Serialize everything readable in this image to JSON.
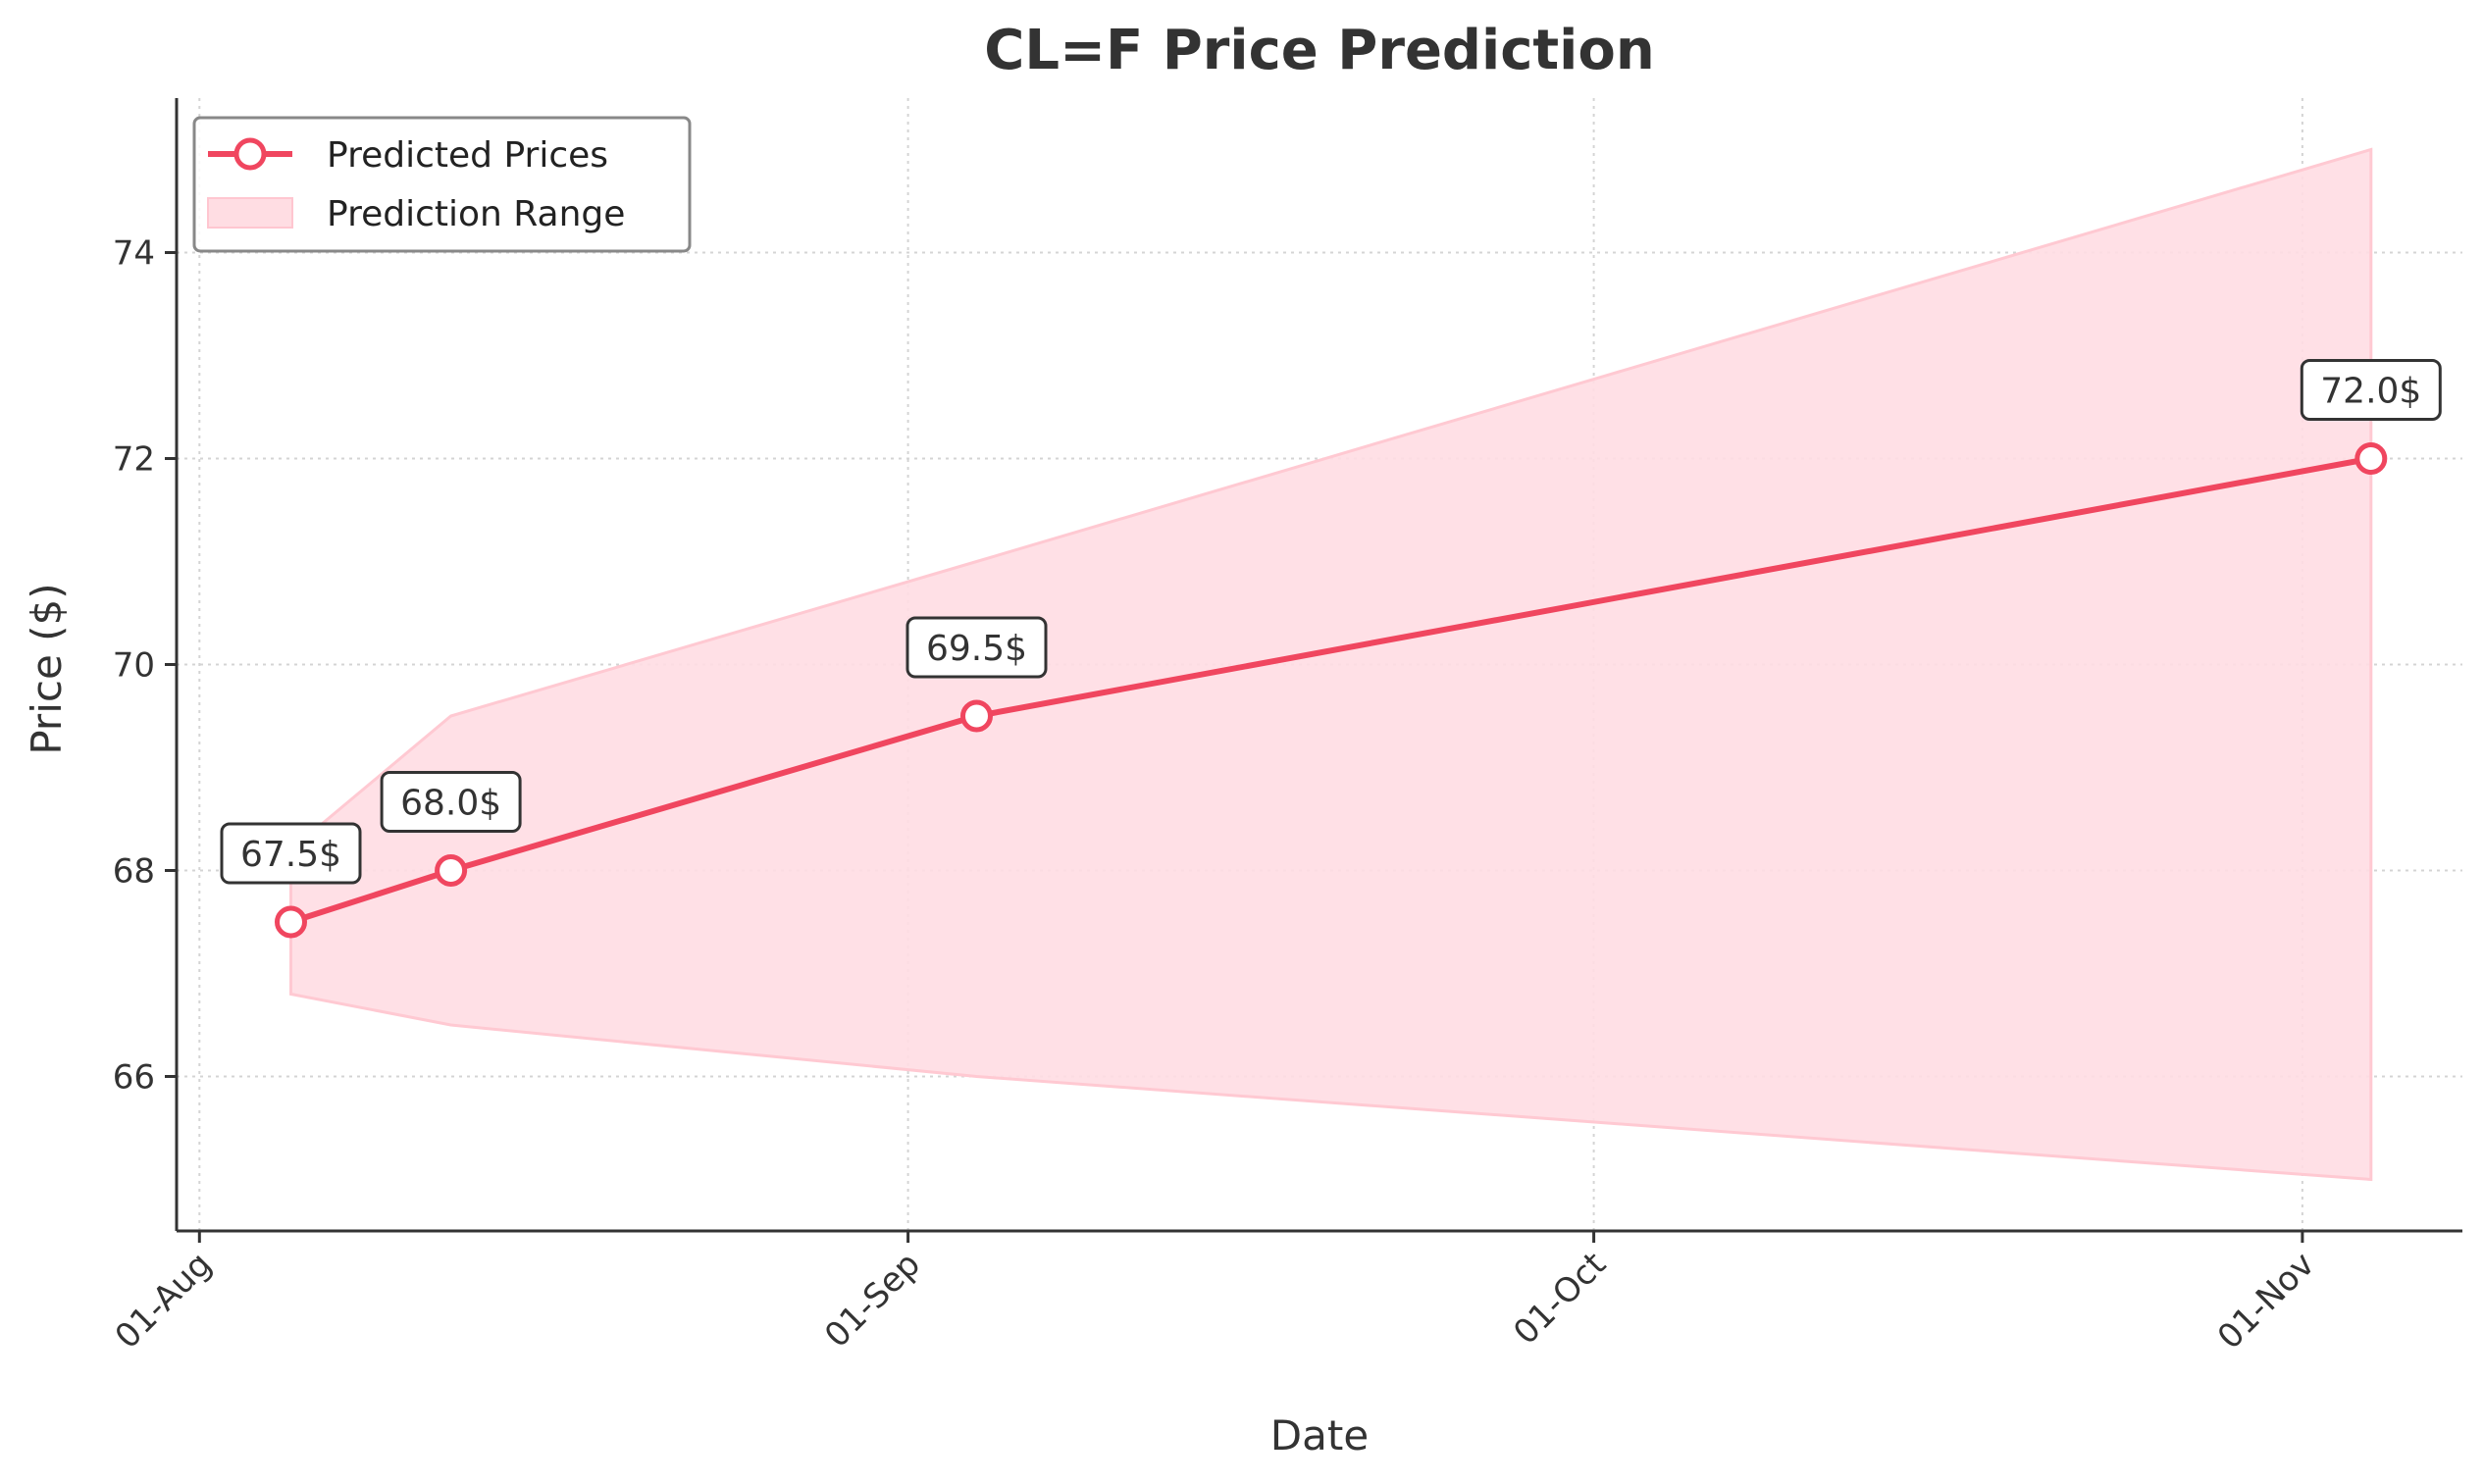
{
  "chart_data": {
    "type": "line",
    "title": "CL=F Price Prediction",
    "xlabel": "Date",
    "ylabel": "Price ($)",
    "x_ticks": [
      "01-Aug",
      "01-Sep",
      "01-Oct",
      "01-Nov"
    ],
    "x_tick_dates": [
      "2024-08-01",
      "2024-09-01",
      "2024-10-01",
      "2024-11-01"
    ],
    "x_range": [
      "2024-07-31",
      "2024-11-08"
    ],
    "ylim": [
      64.5,
      75.5
    ],
    "y_ticks": [
      66,
      68,
      70,
      72,
      74
    ],
    "grid": true,
    "legend_position": "top-left",
    "series": [
      {
        "name": "Predicted Prices",
        "color": "#F0465F",
        "x": [
          "2024-08-05",
          "2024-08-12",
          "2024-09-04",
          "2024-11-04"
        ],
        "y": [
          67.5,
          68.0,
          69.5,
          72.0
        ],
        "data_labels": [
          "67.5$",
          "68.0$",
          "69.5$",
          "72.0$"
        ]
      }
    ],
    "range": {
      "name": "Prediction Range",
      "color": "#FFDDE3",
      "x": [
        "2024-08-05",
        "2024-08-12",
        "2024-09-04",
        "2024-11-04"
      ],
      "upper": [
        68.2,
        69.5,
        71.0,
        75.0
      ],
      "lower": [
        66.8,
        66.5,
        66.0,
        65.0
      ]
    }
  }
}
